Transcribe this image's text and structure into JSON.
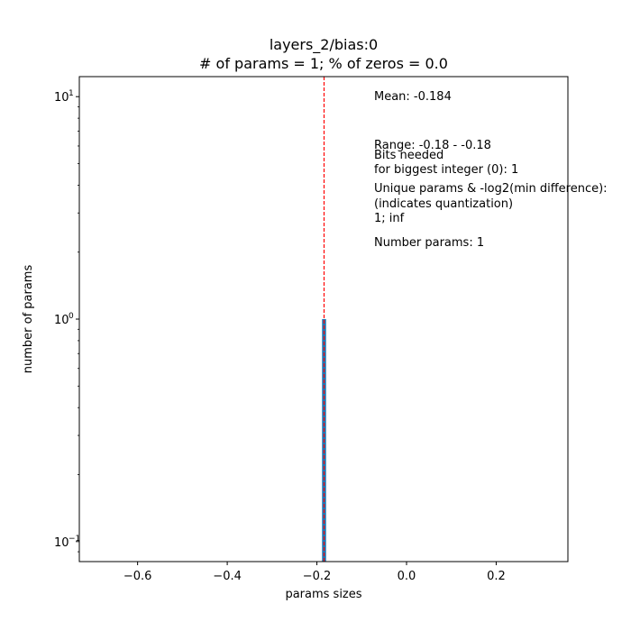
{
  "chart_data": {
    "type": "bar",
    "title_line1": "layers_2/bias:0",
    "title_line2": "# of params = 1; % of zeros = 0.0",
    "xlabel": "params sizes",
    "ylabel": "number of params",
    "xlim": [
      -0.73,
      0.36
    ],
    "ylim_log10": [
      -1.09,
      1.09
    ],
    "yscale": "log",
    "x_ticks": [
      -0.6,
      -0.4,
      -0.2,
      0.0,
      0.2
    ],
    "x_tick_labels": [
      "−0.6",
      "−0.4",
      "−0.2",
      "0.0",
      "0.2"
    ],
    "y_ticks": [
      {
        "value": 0.1,
        "base": "10",
        "exp": "−1"
      },
      {
        "value": 1,
        "base": "10",
        "exp": "0"
      },
      {
        "value": 10,
        "base": "10",
        "exp": "1"
      }
    ],
    "bars": [
      {
        "x_center": -0.184,
        "width": 0.009,
        "count": 1
      }
    ],
    "mean_line": -0.184,
    "bar_color": "#1f77b4",
    "mean_line_color": "#ff0000",
    "annotations": [
      "Mean: -0.184",
      "Range: -0.18 - -0.18",
      "Bits needed",
      "for biggest integer (0): 1",
      "Unique params & -log2(min difference):",
      "(indicates quantization)",
      "1; inf",
      "Number params: 1"
    ]
  }
}
